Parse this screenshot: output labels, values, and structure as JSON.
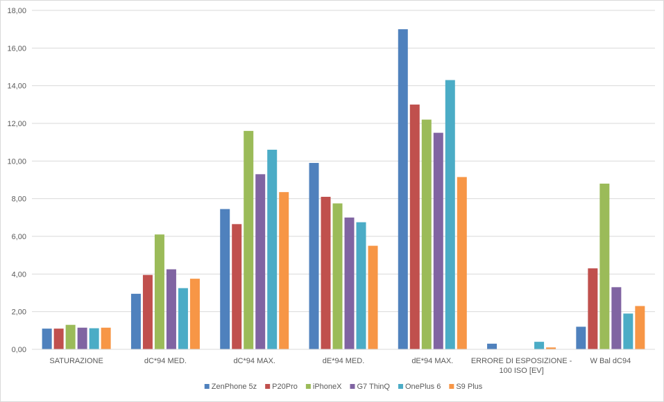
{
  "chart_data": {
    "type": "bar",
    "categories": [
      [
        "SATURAZIONE"
      ],
      [
        "dC*94 MED."
      ],
      [
        "dC*94 MAX."
      ],
      [
        "dE*94 MED."
      ],
      [
        "dE*94 MAX."
      ],
      [
        "ERRORE DI ESPOSIZIONE -",
        "100 ISO [EV]"
      ],
      [
        "W Bal dC94"
      ]
    ],
    "series": [
      {
        "name": "ZenPhone 5z",
        "color": "#4f81bd",
        "values": [
          1.1,
          2.95,
          7.45,
          9.9,
          17.0,
          0.3,
          1.2
        ]
      },
      {
        "name": "P20Pro",
        "color": "#c0504d",
        "values": [
          1.1,
          3.95,
          6.65,
          8.1,
          13.0,
          null,
          4.3
        ]
      },
      {
        "name": "iPhoneX",
        "color": "#9bbb59",
        "values": [
          1.3,
          6.1,
          11.6,
          7.75,
          12.2,
          null,
          8.8
        ]
      },
      {
        "name": "G7 ThinQ",
        "color": "#8064a2",
        "values": [
          1.15,
          4.25,
          9.3,
          7.0,
          11.5,
          null,
          3.3
        ]
      },
      {
        "name": "OnePlus 6",
        "color": "#4bacc6",
        "values": [
          1.12,
          3.25,
          10.6,
          6.75,
          14.3,
          0.4,
          1.9
        ]
      },
      {
        "name": "S9 Plus",
        "color": "#f79646",
        "values": [
          1.15,
          3.75,
          8.35,
          5.5,
          9.15,
          0.1,
          2.3
        ]
      }
    ],
    "y_ticks": [
      "0,00",
      "2,00",
      "4,00",
      "6,00",
      "8,00",
      "10,00",
      "12,00",
      "14,00",
      "16,00",
      "18,00"
    ],
    "ylim": [
      0,
      18
    ],
    "y_step": 2,
    "grid": true,
    "legend_position": "bottom"
  }
}
